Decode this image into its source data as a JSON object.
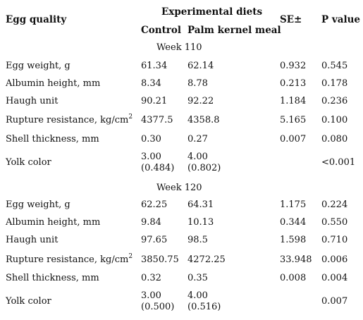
{
  "header": {
    "egg_quality": "Egg quality",
    "experimental_diets": "Experimental diets",
    "control": "Control",
    "palm_kernel_meal": "Palm kernel meal",
    "se": "SE±",
    "p_value": "P value"
  },
  "sections": [
    {
      "title": "Week 110",
      "rows": [
        {
          "label": "Egg weight, g",
          "control": "61.34",
          "pkm": "62.14",
          "se": "0.932",
          "p": "0.545"
        },
        {
          "label": "Albumin height, mm",
          "control": "8.34",
          "pkm": "8.78",
          "se": "0.213",
          "p": "0.178"
        },
        {
          "label": "Haugh unit",
          "control": "90.21",
          "pkm": "92.22",
          "se": "1.184",
          "p": "0.236"
        },
        {
          "label": "Rupture resistance, kg/cm",
          "label_sup": "2",
          "control": "4377.5",
          "pkm": "4358.8",
          "se": "5.165",
          "p": "0.100"
        },
        {
          "label": "Shell thickness, mm",
          "control": "0.30",
          "pkm": "0.27",
          "se": "0.007",
          "p": "0.080"
        },
        {
          "label": "Yolk color",
          "control": "3.00",
          "control2": "(0.484)",
          "pkm": "4.00",
          "pkm2": "(0.802)",
          "se": "",
          "p": "<0.001"
        }
      ]
    },
    {
      "title": "Week 120",
      "rows": [
        {
          "label": "Egg weight, g",
          "control": "62.25",
          "pkm": "64.31",
          "se": "1.175",
          "p": "0.224"
        },
        {
          "label": "Albumin height, mm",
          "control": "9.84",
          "pkm": "10.13",
          "se": "0.344",
          "p": "0.550"
        },
        {
          "label": "Haugh unit",
          "control": "97.65",
          "pkm": "98.5",
          "se": "1.598",
          "p": "0.710"
        },
        {
          "label": "Rupture resistance, kg/cm",
          "label_sup": "2",
          "control": "3850.75",
          "pkm": "4272.25",
          "se": "33.948",
          "p": "0.006"
        },
        {
          "label": "Shell thickness, mm",
          "control": "0.32",
          "pkm": "0.35",
          "se": "0.008",
          "p": "0.004"
        },
        {
          "label": "Yolk color",
          "control": "3.00",
          "control2": "(0.500)",
          "pkm": "4.00",
          "pkm2": "(0.516)",
          "se": "",
          "p": "0.007"
        }
      ]
    }
  ]
}
